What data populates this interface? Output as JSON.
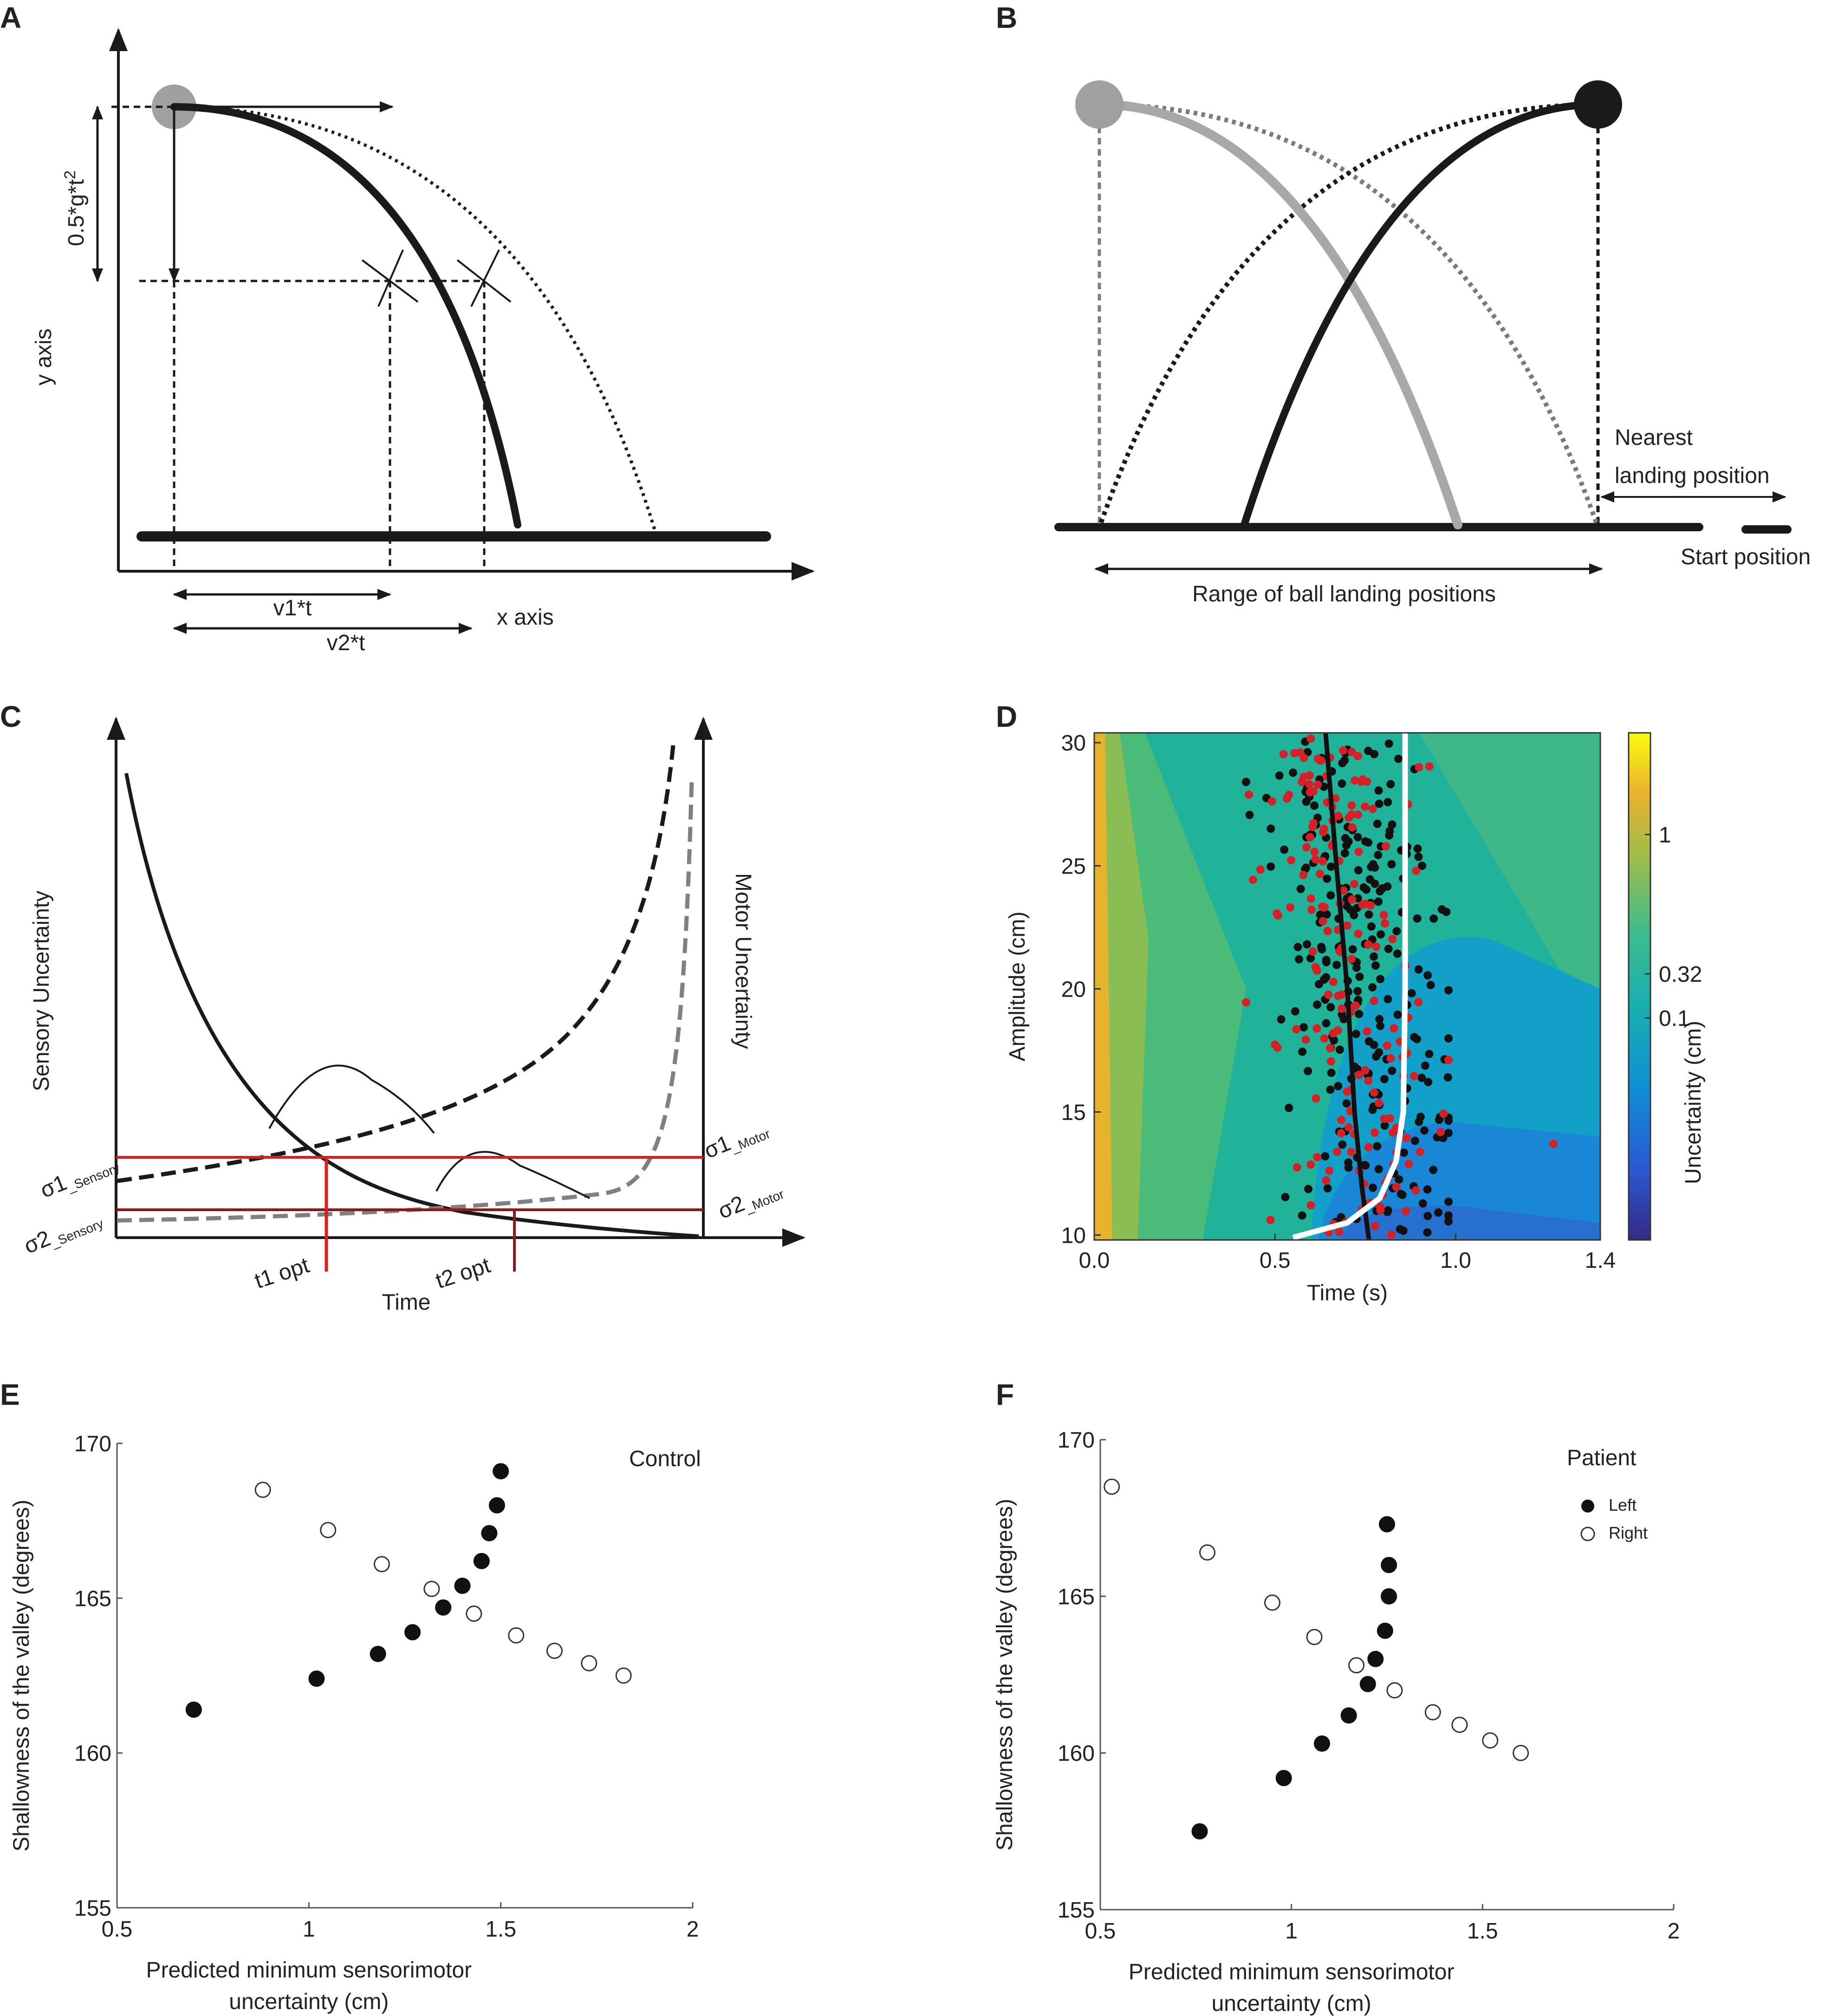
{
  "panels": {
    "a": {
      "label": "A",
      "formula": "0.5*g*t",
      "formula_sup": "2",
      "y_axis": "y axis",
      "x_axis": "x axis",
      "v1": "v1*t",
      "v2": "v2*t"
    },
    "b": {
      "label": "B",
      "nearest_1": "Nearest",
      "nearest_2": "landing position",
      "start": "Start position",
      "range": "Range of ball landing positions"
    },
    "c": {
      "label": "C",
      "sensory": "Sensory Uncertainty",
      "motor": "Motor Uncertainty",
      "time": "Time",
      "s1": "σ1",
      "s1_sub": "_Sensory",
      "s2": "σ2",
      "s2_sub": "_Sensory",
      "m1": "σ1",
      "m1_sub": "_Motor",
      "m2": "σ2",
      "m2_sub": "_Motor",
      "t1": "t1 opt",
      "t2": "t2 opt"
    },
    "d": {
      "label": "D",
      "e": "E",
      "f": "F"
    }
  },
  "colors": {
    "red": "#d42027",
    "darkred": "#8b1a1a",
    "gray_ball": "#a0a0a0",
    "black": "#1a1a1a"
  },
  "chart_data": [
    {
      "id": "D",
      "type": "heatmap",
      "title": "",
      "xlabel": "Time (s)",
      "ylabel": "Amplitude (cm)",
      "xlim": [
        0.0,
        1.4
      ],
      "ylim": [
        9.8,
        30.4
      ],
      "xticks": [
        0.0,
        0.5,
        1.0,
        1.4
      ],
      "xtick_labels": [
        "0.0",
        "0.5",
        "1.0",
        "1.4"
      ],
      "yticks": [
        10,
        15,
        20,
        25,
        30
      ],
      "ytick_labels": [
        "10",
        "15",
        "20",
        "25",
        "30"
      ],
      "colorbar": {
        "label": "Uncertainty (cm)",
        "ticks": [
          1,
          0.32,
          0.1
        ],
        "tick_labels": [
          "1",
          "0.32",
          "0.1"
        ],
        "scale": "parula"
      },
      "series": [
        {
          "name": "optimal-time-line",
          "type": "line",
          "color": "black",
          "x": [
            0.64,
            0.67,
            0.7,
            0.72,
            0.74,
            0.76
          ],
          "y": [
            30.4,
            25,
            20,
            15,
            12,
            9.8
          ]
        },
        {
          "name": "boundary-line",
          "type": "line",
          "color": "white",
          "x": [
            0.86,
            0.86,
            0.86,
            0.855,
            0.835,
            0.79,
            0.7,
            0.55
          ],
          "y": [
            30.4,
            25,
            20,
            15,
            13,
            11.5,
            10.5,
            9.9
          ]
        }
      ],
      "scatter_seed": 20240,
      "black_points_count": 260,
      "red_points_count": 180
    },
    {
      "id": "E",
      "type": "scatter",
      "title": "Control",
      "xlabel": "Predicted minimum sensorimotor uncertainty (cm)",
      "xlabel_lines": [
        "Predicted minimum sensorimotor",
        "uncertainty (cm)"
      ],
      "ylabel": "Shallowness of the valley (degrees)",
      "xlim": [
        0.5,
        2
      ],
      "ylim": [
        155,
        170
      ],
      "xticks": [
        0.5,
        1,
        1.5,
        2
      ],
      "xtick_labels": [
        "0.5",
        "1",
        "1.5",
        "2"
      ],
      "yticks": [
        155,
        160,
        165,
        170
      ],
      "ytick_labels": [
        "155",
        "160",
        "165",
        "170"
      ],
      "series": [
        {
          "name": "Left",
          "filled": true,
          "x": [
            0.7,
            1.02,
            1.18,
            1.27,
            1.35,
            1.4,
            1.45,
            1.47,
            1.49,
            1.5
          ],
          "y": [
            161.4,
            162.4,
            163.2,
            163.9,
            164.7,
            165.4,
            166.2,
            167.1,
            168.0,
            169.1
          ]
        },
        {
          "name": "Right",
          "filled": false,
          "x": [
            0.88,
            1.05,
            1.19,
            1.32,
            1.43,
            1.54,
            1.64,
            1.73,
            1.82
          ],
          "y": [
            168.5,
            167.2,
            166.1,
            165.3,
            164.5,
            163.8,
            163.3,
            162.9,
            162.5
          ]
        }
      ]
    },
    {
      "id": "F",
      "type": "scatter",
      "title": "Patient",
      "legend": [
        "Left",
        "Right"
      ],
      "xlabel": "Predicted minimum sensorimotor uncertainty (cm)",
      "xlabel_lines": [
        "Predicted minimum sensorimotor",
        "uncertainty (cm)"
      ],
      "ylabel": "Shallowness of the valley (degrees)",
      "xlim": [
        0.5,
        2
      ],
      "ylim": [
        155,
        170
      ],
      "xticks": [
        0.5,
        1,
        1.5,
        2
      ],
      "xtick_labels": [
        "0.5",
        "1",
        "1.5",
        "2"
      ],
      "yticks": [
        155,
        160,
        165,
        170
      ],
      "ytick_labels": [
        "155",
        "160",
        "165",
        "170"
      ],
      "series": [
        {
          "name": "Left",
          "filled": true,
          "x": [
            0.76,
            0.98,
            1.08,
            1.15,
            1.2,
            1.22,
            1.245,
            1.255,
            1.255,
            1.25
          ],
          "y": [
            157.5,
            159.2,
            160.3,
            161.2,
            162.2,
            163.0,
            163.9,
            165.0,
            166.0,
            167.3
          ]
        },
        {
          "name": "Right",
          "filled": false,
          "x": [
            0.53,
            0.78,
            0.95,
            1.06,
            1.17,
            1.27,
            1.37,
            1.44,
            1.52,
            1.6
          ],
          "y": [
            168.5,
            166.4,
            164.8,
            163.7,
            162.8,
            162.0,
            161.3,
            160.9,
            160.4,
            160.0
          ]
        }
      ]
    }
  ]
}
